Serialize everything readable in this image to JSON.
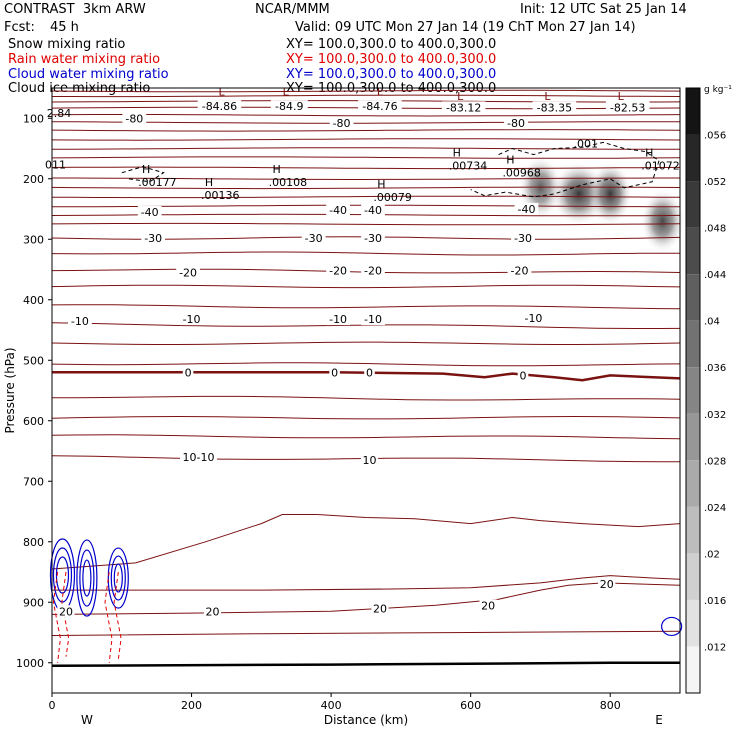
{
  "header": {
    "title_left": "CONTRAST  3km ARW",
    "title_center": "NCAR/MMM",
    "init": "Init: 12 UTC Sat 25 Jan 14",
    "fcst_label": "Fcst:",
    "fcst_value": "45 h",
    "valid": "Valid: 09 UTC Mon 27 Jan 14 (19 ChT Mon 27 Jan 14)"
  },
  "legend": [
    {
      "label": "Snow mixing ratio",
      "xy": "XY= 100.0,300.0 to 400.0,300.0",
      "color": "#000000"
    },
    {
      "label": "Rain water mixing ratio",
      "xy": "XY= 100.0,300.0 to 400.0,300.0",
      "color": "#e00000"
    },
    {
      "label": "Cloud water mixing ratio",
      "xy": "XY= 100.0,300.0 to 400.0,300.0",
      "color": "#0000cc"
    },
    {
      "label": "Cloud ice mixing ratio",
      "xy": "XY= 100.0,300.0 to 400.0,300.0",
      "color": "#000000"
    }
  ],
  "colorbar": {
    "unit": "g kg⁻¹",
    "ticks": [
      ".056",
      ".052",
      ".048",
      ".044",
      ".04",
      ".036",
      ".032",
      ".028",
      ".024",
      ".02",
      ".016",
      ".012"
    ]
  },
  "axes": {
    "ylabel": "Pressure (hPa)",
    "xlabel": "Distance (km)",
    "west": "W",
    "east": "E",
    "yticks": [
      "100",
      "200",
      "300",
      "400",
      "500",
      "600",
      "700",
      "800",
      "900",
      "1000"
    ],
    "xticks": [
      "0",
      "200",
      "400",
      "600",
      "800"
    ]
  },
  "chart_data": {
    "type": "contour",
    "xlim": [
      0,
      900
    ],
    "ylim_hpa": [
      1050,
      50
    ],
    "temperature_contours_c": [
      -80,
      -40,
      -30,
      -20,
      -10,
      0,
      10,
      20
    ],
    "temperature_labels": [
      {
        "text": "-84.86",
        "x": 240,
        "p": 80
      },
      {
        "text": "-84.9",
        "x": 340,
        "p": 80
      },
      {
        "text": "-84.76",
        "x": 470,
        "p": 80
      },
      {
        "text": "-83.12",
        "x": 590,
        "p": 82
      },
      {
        "text": "-83.35",
        "x": 720,
        "p": 82
      },
      {
        "text": "-82.53",
        "x": 825,
        "p": 82
      },
      {
        "text": "-80",
        "x": 118,
        "p": 100
      },
      {
        "text": "-80",
        "x": 415,
        "p": 108
      },
      {
        "text": "-80",
        "x": 665,
        "p": 108
      },
      {
        "text": "-40",
        "x": 140,
        "p": 255
      },
      {
        "text": "-40",
        "x": 410,
        "p": 252
      },
      {
        "text": "-40",
        "x": 460,
        "p": 252
      },
      {
        "text": "-40",
        "x": 680,
        "p": 250
      },
      {
        "text": "-30",
        "x": 145,
        "p": 298
      },
      {
        "text": "-30",
        "x": 375,
        "p": 298
      },
      {
        "text": "-30",
        "x": 460,
        "p": 298
      },
      {
        "text": "-30",
        "x": 675,
        "p": 298
      },
      {
        "text": "-20",
        "x": 195,
        "p": 355
      },
      {
        "text": "-20",
        "x": 410,
        "p": 352
      },
      {
        "text": "-20",
        "x": 460,
        "p": 352
      },
      {
        "text": "-20",
        "x": 670,
        "p": 352
      },
      {
        "text": "-10",
        "x": 40,
        "p": 435
      },
      {
        "text": "-10",
        "x": 200,
        "p": 432
      },
      {
        "text": "-10",
        "x": 410,
        "p": 432
      },
      {
        "text": "-10",
        "x": 460,
        "p": 432
      },
      {
        "text": "-10",
        "x": 690,
        "p": 430
      },
      {
        "text": "0",
        "x": 195,
        "p": 520
      },
      {
        "text": "0",
        "x": 405,
        "p": 520
      },
      {
        "text": "0",
        "x": 455,
        "p": 520
      },
      {
        "text": "0",
        "x": 675,
        "p": 525
      },
      {
        "text": "10-10",
        "x": 210,
        "p": 660
      },
      {
        "text": "10",
        "x": 455,
        "p": 665
      },
      {
        "text": "20",
        "x": 795,
        "p": 870
      },
      {
        "text": "20",
        "x": 625,
        "p": 905
      },
      {
        "text": "20",
        "x": 470,
        "p": 910
      },
      {
        "text": "20",
        "x": 230,
        "p": 915
      },
      {
        "text": "20",
        "x": 20,
        "p": 915
      }
    ],
    "max_labels": [
      {
        "text": "H",
        "value": ".00177",
        "x": 135,
        "p": 200
      },
      {
        "text": "H",
        "value": ".00136",
        "x": 225,
        "p": 222
      },
      {
        "text": "H",
        "value": ".00108",
        "x": 322,
        "p": 200
      },
      {
        "text": "H",
        "value": ".00079",
        "x": 472,
        "p": 225
      },
      {
        "text": "H",
        "value": ".00734",
        "x": 580,
        "p": 173
      },
      {
        "text": "H",
        "value": ".00968",
        "x": 657,
        "p": 185
      },
      {
        "text": "H",
        "value": ".01072",
        "x": 856,
        "p": 173
      }
    ],
    "min_labels": [
      {
        "text": "L",
        "x": 243,
        "p": 62
      },
      {
        "text": "L",
        "x": 335,
        "p": 62
      },
      {
        "text": "L",
        "x": 470,
        "p": 62
      },
      {
        "text": "L",
        "x": 585,
        "p": 70
      },
      {
        "text": "L",
        "x": 710,
        "p": 70
      },
      {
        "text": "L",
        "x": 815,
        "p": 70
      }
    ],
    "misc_labels": [
      {
        "text": "2.84",
        "x": 10,
        "p": 98
      },
      {
        "text": "011",
        "x": 5,
        "p": 183
      },
      {
        "text": ".001",
        "x": 765,
        "p": 148
      }
    ],
    "snow_shading": [
      {
        "x": 755,
        "p": 225,
        "max": 0.056
      },
      {
        "x": 800,
        "p": 225,
        "max": 0.056
      },
      {
        "x": 875,
        "p": 270,
        "max": 0.048
      },
      {
        "x": 700,
        "p": 215,
        "max": 0.036
      }
    ]
  }
}
